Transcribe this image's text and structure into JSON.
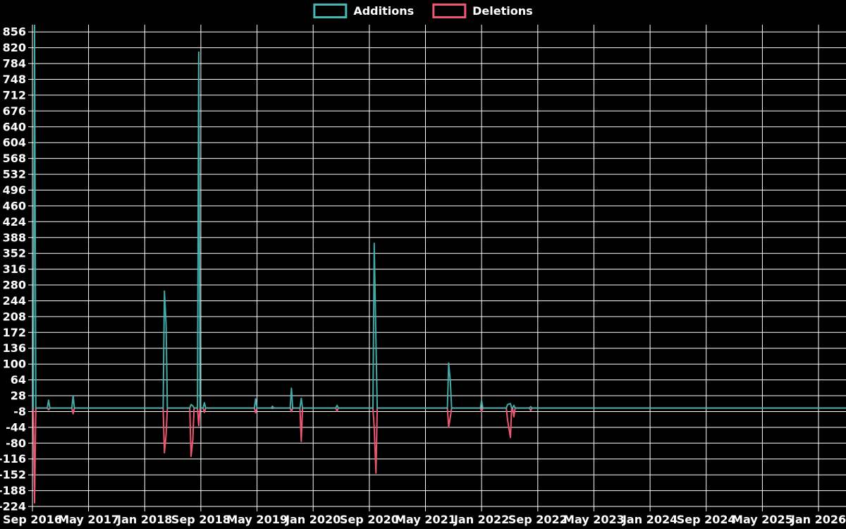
{
  "legend": {
    "items": [
      {
        "label": "Additions",
        "color": "#45b8b4"
      },
      {
        "label": "Deletions",
        "color": "#ee5771"
      }
    ]
  },
  "chart_data": {
    "type": "line",
    "title": "",
    "xlabel": "",
    "ylabel": "",
    "background_color": "#000000",
    "grid_color": "#ffffff",
    "text_color": "#ffffff",
    "grid": true,
    "legend_position": "top-center",
    "x_axis": {
      "tick_labels": [
        "Sep 2016",
        "May 2017",
        "Jan 2018",
        "Sep 2018",
        "May 2019",
        "Jan 2020",
        "Sep 2020",
        "May 2021",
        "Jan 2022",
        "Sep 2022",
        "May 2023",
        "Jan 2024",
        "Sep 2024",
        "May 2025",
        "Jan 2026"
      ],
      "tick_interval_months": 8,
      "x_start_month": 0,
      "x_end_month": 115.9
    },
    "y_axis": {
      "tick_values": [
        856,
        820,
        784,
        748,
        712,
        676,
        640,
        604,
        568,
        532,
        496,
        460,
        424,
        388,
        352,
        316,
        280,
        244,
        208,
        172,
        136,
        100,
        64,
        28,
        -8,
        -44,
        -80,
        -116,
        -152,
        -188,
        -224
      ],
      "tick_step": 36,
      "ylim": [
        -228.8,
        872.4
      ]
    },
    "series_meta": [
      {
        "name": "Additions",
        "key": "add",
        "color": "#45b8b4"
      },
      {
        "name": "Deletions",
        "key": "del",
        "color": "#ee5771"
      }
    ],
    "baseline_value": 0,
    "clipped_note": "Additions spike at Sep 2016 is clipped at top of plot area (value >= 872); line is flat at 0 from late 2022 through Jan 2026",
    "events": [
      {
        "m": 0.3,
        "add": 872,
        "del": -216
      },
      {
        "m": 2.3,
        "add": 18,
        "del": -4
      },
      {
        "m": 5.8,
        "add": 28,
        "del": -13
      },
      {
        "m": 18.8,
        "add": 266,
        "del": -102
      },
      {
        "m": 19.05,
        "add": 190,
        "del": -60
      },
      {
        "m": 22.6,
        "add": 8,
        "del": -110
      },
      {
        "m": 22.85,
        "add": 5,
        "del": -72
      },
      {
        "m": 23.7,
        "add": 810,
        "del": -40
      },
      {
        "m": 24.5,
        "add": 12,
        "del": -10
      },
      {
        "m": 31.8,
        "add": 21,
        "del": -11
      },
      {
        "m": 34.2,
        "add": 4,
        "del": -1
      },
      {
        "m": 36.9,
        "add": 45,
        "del": -8
      },
      {
        "m": 38.3,
        "add": 22,
        "del": -76
      },
      {
        "m": 43.4,
        "add": 6,
        "del": -7
      },
      {
        "m": 48.7,
        "add": 375,
        "del": -45
      },
      {
        "m": 48.95,
        "add": 150,
        "del": -148
      },
      {
        "m": 59.3,
        "add": 102,
        "del": -43
      },
      {
        "m": 59.55,
        "add": 60,
        "del": -20
      },
      {
        "m": 64.0,
        "add": 17,
        "del": -8
      },
      {
        "m": 67.7,
        "add": 8,
        "del": -28
      },
      {
        "m": 68.1,
        "add": 10,
        "del": -67
      },
      {
        "m": 68.6,
        "add": 6,
        "del": -20
      },
      {
        "m": 71.0,
        "add": 3,
        "del": -6
      }
    ]
  }
}
